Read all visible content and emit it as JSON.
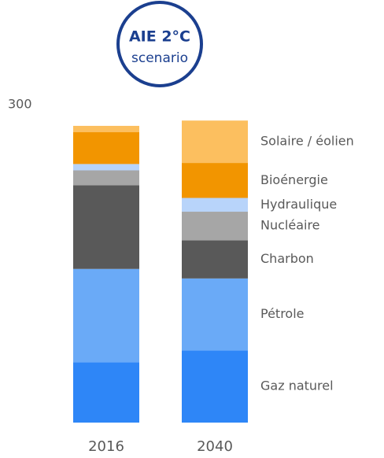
{
  "chart_data": {
    "type": "stacked_bar",
    "badge": {
      "title": "AIE 2°C",
      "subtitle": "scenario"
    },
    "categories": [
      "2016",
      "2040"
    ],
    "series": [
      {
        "name": "Gaz naturel",
        "color": "#2e86f7",
        "values": [
          57,
          68
        ]
      },
      {
        "name": "Pétrole",
        "color": "#6aaaf7",
        "values": [
          88,
          68
        ]
      },
      {
        "name": "Charbon",
        "color": "#595959",
        "values": [
          79,
          36
        ]
      },
      {
        "name": "Nucléaire",
        "color": "#a6a6a6",
        "values": [
          14,
          27
        ]
      },
      {
        "name": "Hydraulique",
        "color": "#b8d4fa",
        "values": [
          6,
          13
        ]
      },
      {
        "name": "Bioénergie",
        "color": "#f29500",
        "values": [
          30,
          33
        ]
      },
      {
        "name": "Solaire / éolien",
        "color": "#fcbf5f",
        "values": [
          6,
          40
        ]
      }
    ],
    "ylim": [
      0,
      300
    ],
    "yticks": [
      300
    ],
    "grid": false,
    "legend": "right"
  }
}
